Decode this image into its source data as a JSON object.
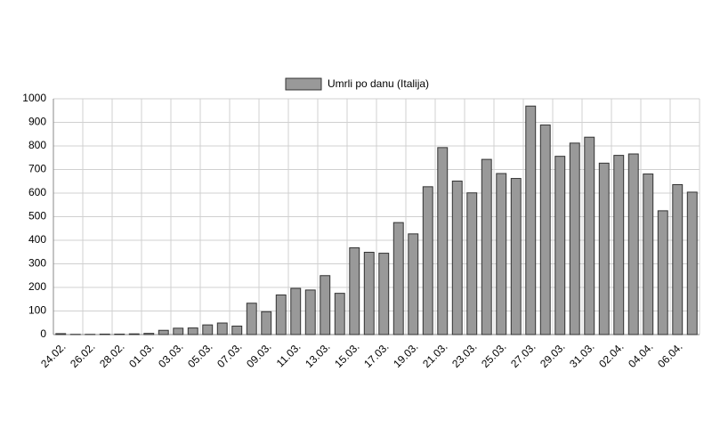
{
  "chart_data": {
    "type": "bar",
    "legend": "Umrli po danu (Italija)",
    "color": "#999999",
    "categories": [
      "24.02.",
      null,
      "26.02.",
      null,
      "28.02.",
      null,
      "01.03.",
      null,
      "03.03.",
      null,
      "05.03.",
      null,
      "07.03.",
      null,
      "09.03.",
      null,
      "11.03.",
      null,
      "13.03.",
      null,
      "15.03.",
      null,
      "17.03.",
      null,
      "19.03.",
      null,
      "21.03.",
      null,
      "23.03.",
      null,
      "25.03.",
      null,
      "27.03.",
      null,
      "29.03.",
      null,
      "31.03.",
      null,
      "02.04.",
      null,
      "04.04.",
      null,
      "06.04.",
      null
    ],
    "values": [
      4,
      1,
      1,
      2,
      2,
      3,
      5,
      18,
      27,
      28,
      41,
      49,
      36,
      133,
      97,
      168,
      196,
      189,
      250,
      175,
      368,
      349,
      345,
      475,
      427,
      627,
      793,
      651,
      601,
      743,
      683,
      662,
      969,
      889,
      756,
      812,
      837,
      727,
      760,
      766,
      681,
      525,
      636,
      604
    ],
    "ylim": [
      0,
      1000
    ],
    "yticks": [
      0,
      100,
      200,
      300,
      400,
      500,
      600,
      700,
      800,
      900,
      1000
    ],
    "grid": true
  }
}
